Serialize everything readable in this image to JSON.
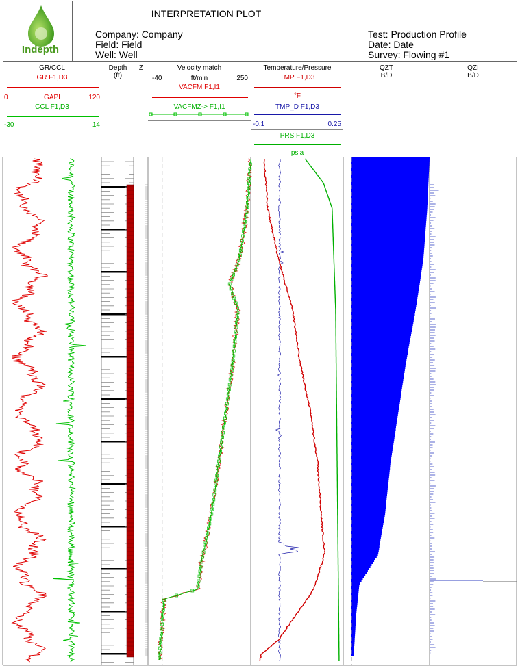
{
  "header": {
    "title": "INTERPRETATION PLOT",
    "logo_text": "Indepth",
    "company": "Company: Company",
    "field": "Field: Field",
    "well": "Well: Well",
    "test": "Test: Production Profile",
    "date": "Date: Date",
    "survey": "Survey: Flowing #1"
  },
  "tracks": {
    "grccl": {
      "title": "GR/CCL",
      "gr_label": "GR  F1,D3",
      "gr_unit": "GAPI",
      "gr_min": "0",
      "gr_max": "120",
      "ccl_label": "CCL  F1,D3",
      "ccl_min": "-30",
      "ccl_max": "14"
    },
    "depth": {
      "title": "Depth",
      "unit": "(ft)"
    },
    "z": {
      "title": "Z"
    },
    "velocity": {
      "title": "Velocity match",
      "min": "-40",
      "unit": "ft/min",
      "max": "250",
      "vacfm_label": "VACFM  F1,I1",
      "vacfmz_label": "VACFMZ->  F1,I1"
    },
    "temppres": {
      "title": "Temperature/Pressure",
      "tmp_label": "TMP  F1,D3",
      "tmp_unit": "°F",
      "tmpd_label": "TMP_D  F1,D3",
      "tmpd_min": "-0.1",
      "tmpd_max": "0.25",
      "prs_label": "PRS  F1,D3",
      "prs_unit": "psia"
    },
    "qzt": {
      "title": "QZT",
      "unit": "B/D"
    },
    "qzi": {
      "title": "QZI",
      "unit": "B/D"
    }
  },
  "colors": {
    "gr": "#e00000",
    "ccl": "#00c000",
    "tmp": "#d00000",
    "tmpd": "#1818a8",
    "prs": "#00b000",
    "qzt": "#0000ff",
    "zone": "#b00000"
  },
  "chart_data": {
    "type": "line",
    "index_axis": "depth (unlabeled, top = shallow)",
    "series": [
      {
        "name": "VACFM",
        "unit": "ft/min",
        "range": [
          -40,
          250
        ],
        "profile": [
          [
            0,
            250
          ],
          [
            0.1,
            240
          ],
          [
            0.2,
            218
          ],
          [
            0.25,
            190
          ],
          [
            0.3,
            214
          ],
          [
            0.4,
            200
          ],
          [
            0.5,
            180
          ],
          [
            0.6,
            160
          ],
          [
            0.7,
            140
          ],
          [
            0.8,
            110
          ],
          [
            0.85,
            100
          ],
          [
            0.87,
            5
          ],
          [
            0.92,
            0
          ],
          [
            1.0,
            -10
          ]
        ]
      },
      {
        "name": "TMP",
        "unit": "°F",
        "profile": [
          [
            0,
            0.1
          ],
          [
            0.1,
            0.15
          ],
          [
            0.2,
            0.3
          ],
          [
            0.3,
            0.5
          ],
          [
            0.4,
            0.6
          ],
          [
            0.5,
            0.75
          ],
          [
            0.6,
            0.85
          ],
          [
            0.7,
            0.9
          ],
          [
            0.78,
            0.95
          ],
          [
            0.85,
            0.8
          ],
          [
            0.9,
            0.55
          ],
          [
            0.95,
            0.3
          ],
          [
            0.98,
            0.05
          ]
        ]
      },
      {
        "name": "PRS",
        "unit": "psia",
        "profile": [
          [
            0,
            0.6
          ],
          [
            0.05,
            0.82
          ],
          [
            0.1,
            0.92
          ],
          [
            0.3,
            0.96
          ],
          [
            1.0,
            1.0
          ]
        ]
      },
      {
        "name": "QZT",
        "unit": "B/D",
        "profile": [
          [
            0,
            1.0
          ],
          [
            0.1,
            0.97
          ],
          [
            0.2,
            0.92
          ],
          [
            0.3,
            0.82
          ],
          [
            0.4,
            0.7
          ],
          [
            0.5,
            0.6
          ],
          [
            0.6,
            0.5
          ],
          [
            0.7,
            0.43
          ],
          [
            0.78,
            0.34
          ],
          [
            0.84,
            0.1
          ],
          [
            0.9,
            0.06
          ],
          [
            1.0,
            0.02
          ]
        ]
      }
    ]
  }
}
